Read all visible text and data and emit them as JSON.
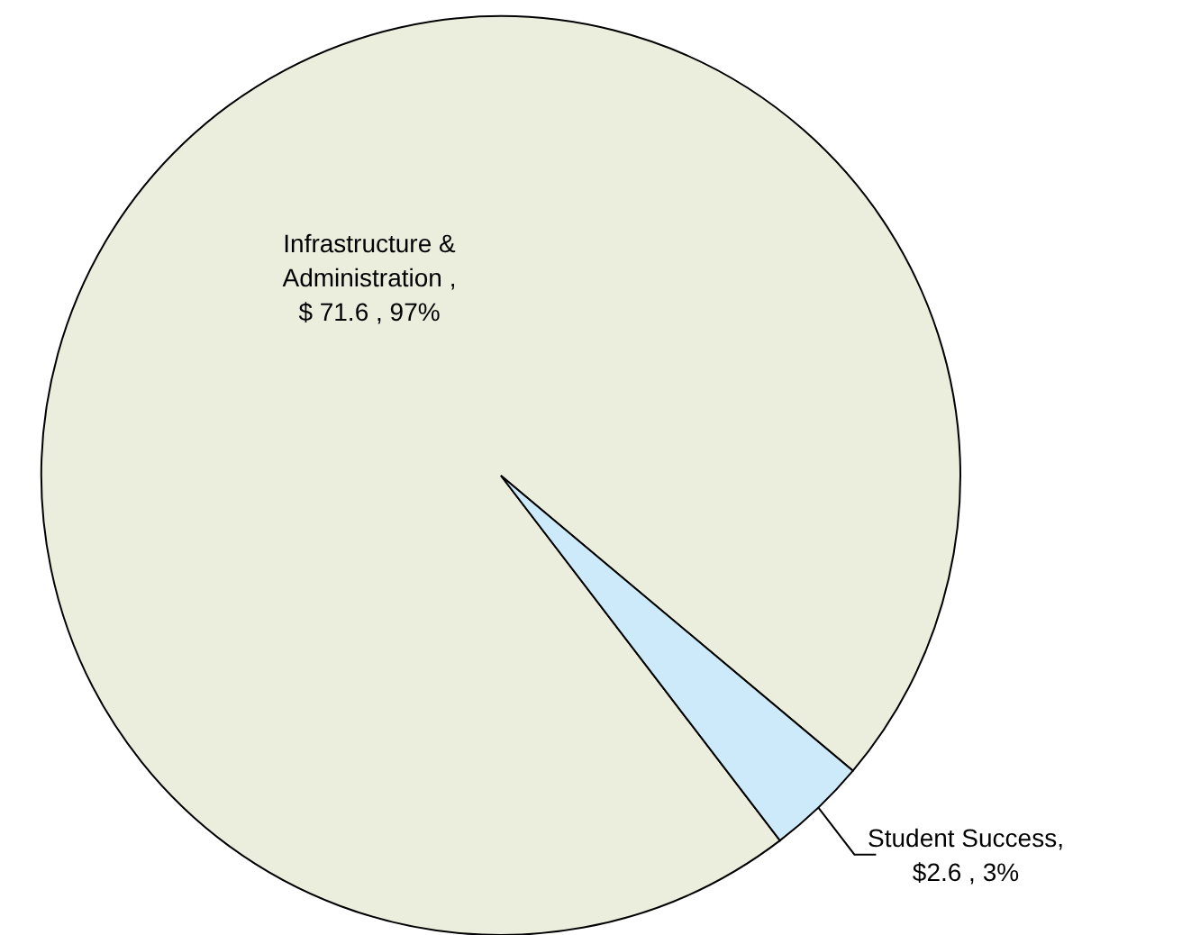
{
  "chart_data": {
    "type": "pie",
    "categories": [
      "Infrastructure & Administration",
      "Student Success"
    ],
    "values": [
      71.6,
      2.6
    ],
    "colors": [
      "#ebeddd",
      "#cdeafb"
    ],
    "value_labels": [
      " , $ 71.6 , 97%",
      ", $2.6 , 3%"
    ]
  }
}
